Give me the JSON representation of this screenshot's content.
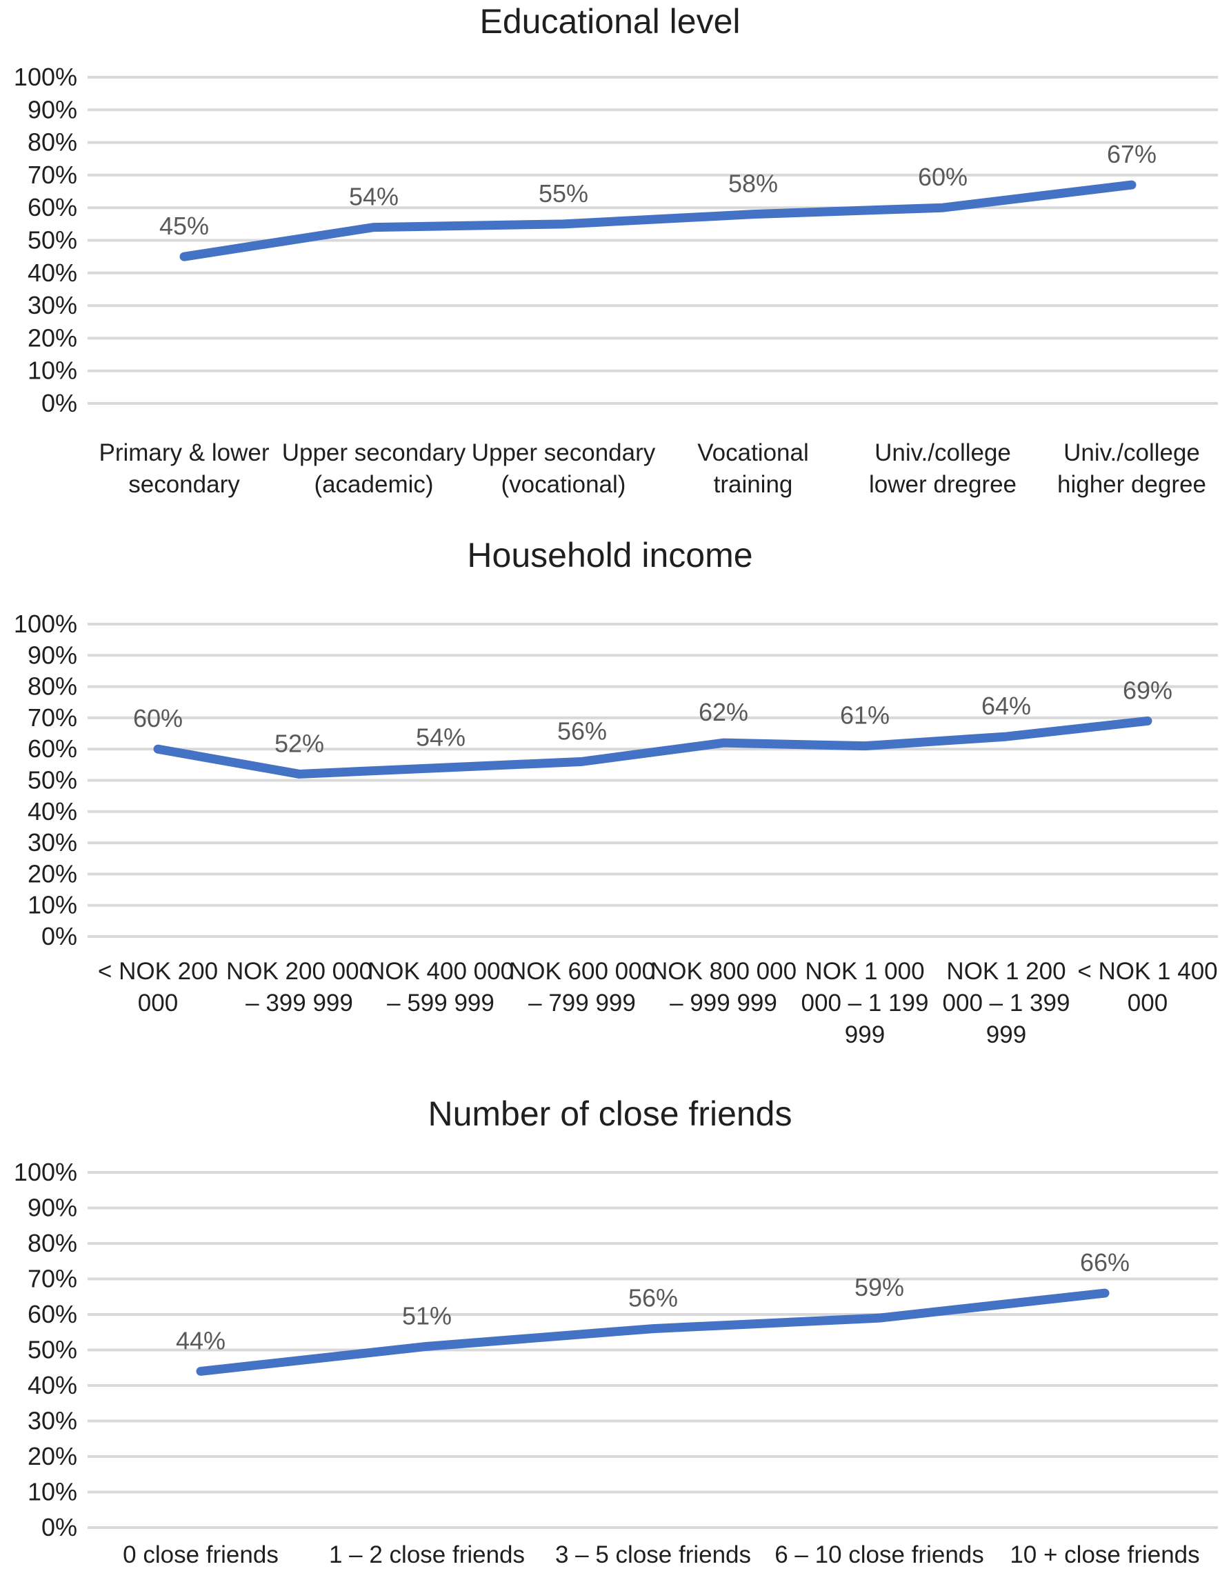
{
  "styles": {
    "line_color": "#4472C4",
    "gridline_color": "#D9D9D9",
    "data_label_color": "#595959",
    "axis_label_color": "#1f1f1f",
    "title_color": "#1f1f1f",
    "background": "#ffffff"
  },
  "chart_data": [
    {
      "type": "line",
      "title": "Educational level",
      "categories": [
        "Primary & lower secondary",
        "Upper secondary (academic)",
        "Upper secondary (vocational)",
        "Vocational training",
        "Univ./college lower dregree",
        "Univ./college higher degree"
      ],
      "category_lines": [
        [
          "Primary & lower",
          "secondary"
        ],
        [
          "Upper secondary",
          "(academic)"
        ],
        [
          "Upper secondary",
          "(vocational)"
        ],
        [
          "Vocational",
          "training"
        ],
        [
          "Univ./college",
          "lower dregree"
        ],
        [
          "Univ./college",
          "higher degree"
        ]
      ],
      "values": [
        45,
        54,
        55,
        58,
        60,
        67
      ],
      "data_labels": [
        "45%",
        "54%",
        "55%",
        "58%",
        "60%",
        "67%"
      ],
      "y_ticks": [
        "100%",
        "90%",
        "80%",
        "70%",
        "60%",
        "50%",
        "40%",
        "30%",
        "20%",
        "10%",
        "0%"
      ],
      "ylim": [
        0,
        100
      ],
      "y_tick_interval": 10,
      "grid": true,
      "legend": "none",
      "xlabel": "",
      "ylabel": ""
    },
    {
      "type": "line",
      "title": "Household income",
      "categories": [
        "< NOK 200 000",
        "NOK 200 000 – 399 999",
        "NOK 400 000 – 599 999",
        "NOK 600 000 – 799 999",
        "NOK 800 000 – 999 999",
        "NOK 1 000 000 – 1 199 999",
        "NOK 1 200 000 – 1 399 999",
        "< NOK 1 400 000"
      ],
      "category_lines": [
        [
          "< NOK 200",
          "000"
        ],
        [
          "NOK 200 000",
          "– 399 999"
        ],
        [
          "NOK 400 000",
          "– 599 999"
        ],
        [
          "NOK 600 000",
          "– 799 999"
        ],
        [
          "NOK 800 000",
          "– 999 999"
        ],
        [
          "NOK 1 000",
          "000 – 1 199",
          "999"
        ],
        [
          "NOK 1 200",
          "000 – 1 399",
          "999"
        ],
        [
          "< NOK 1 400",
          "000"
        ]
      ],
      "values": [
        60,
        52,
        54,
        56,
        62,
        61,
        64,
        69
      ],
      "data_labels": [
        "60%",
        "52%",
        "54%",
        "56%",
        "62%",
        "61%",
        "64%",
        "69%"
      ],
      "y_ticks": [
        "100%",
        "90%",
        "80%",
        "70%",
        "60%",
        "50%",
        "40%",
        "30%",
        "20%",
        "10%",
        "0%"
      ],
      "ylim": [
        0,
        100
      ],
      "y_tick_interval": 10,
      "grid": true,
      "legend": "none",
      "xlabel": "",
      "ylabel": ""
    },
    {
      "type": "line",
      "title": "Number of close friends",
      "categories": [
        "0 close friends",
        "1 – 2 close friends",
        "3 – 5 close friends",
        "6 – 10 close friends",
        "10 +  close friends"
      ],
      "category_lines": [
        [
          "0 close friends"
        ],
        [
          "1 – 2 close friends"
        ],
        [
          "3 – 5 close friends"
        ],
        [
          "6 – 10 close friends"
        ],
        [
          "10 +  close friends"
        ]
      ],
      "values": [
        44,
        51,
        56,
        59,
        66
      ],
      "data_labels": [
        "44%",
        "51%",
        "56%",
        "59%",
        "66%"
      ],
      "y_ticks": [
        "100%",
        "90%",
        "80%",
        "70%",
        "60%",
        "50%",
        "40%",
        "30%",
        "20%",
        "10%",
        "0%"
      ],
      "ylim": [
        0,
        100
      ],
      "y_tick_interval": 10,
      "grid": true,
      "legend": "none",
      "xlabel": "",
      "ylabel": ""
    }
  ]
}
